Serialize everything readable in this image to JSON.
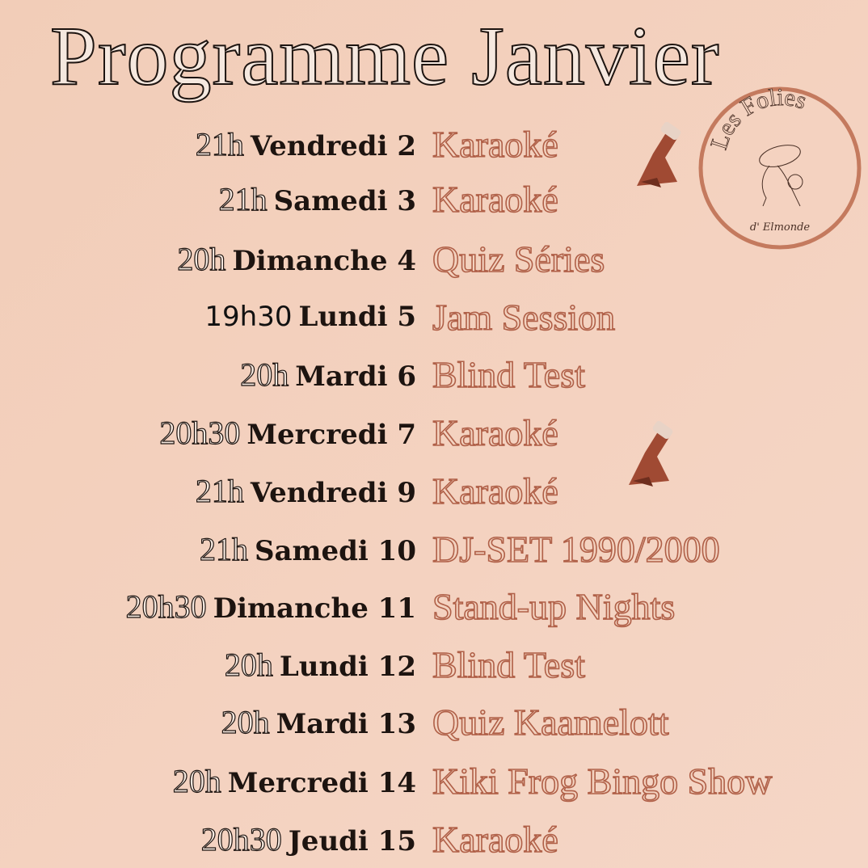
{
  "title": "Programme Janvier",
  "logo": {
    "text_top": "Les Folies",
    "text_bottom": "d' Elmonde",
    "ring_color": "#c47a5e"
  },
  "colors": {
    "background": "#f3d2bf",
    "event": "#b06048",
    "text": "#1d1410"
  },
  "events": [
    {
      "time": "21h",
      "day": "Vendredi 2",
      "event": "Karaoké"
    },
    {
      "time": "21h",
      "day": "Samedi 3",
      "event": "Karaoké"
    },
    {
      "time": "20h",
      "day": "Dimanche 4",
      "event": "Quiz Séries"
    },
    {
      "time": "19h30",
      "day": "Lundi 5",
      "event": "Jam Session"
    },
    {
      "time": "20h",
      "day": "Mardi 6",
      "event": "Blind Test"
    },
    {
      "time": "20h30",
      "day": "Mercredi 7",
      "event": "Karaoké"
    },
    {
      "time": "21h",
      "day": "Vendredi 9",
      "event": "Karaoké"
    },
    {
      "time": "21h",
      "day": "Samedi 10",
      "event": "DJ-SET 1990/2000"
    },
    {
      "time": "20h30",
      "day": "Dimanche 11",
      "event": "Stand-up Nights"
    },
    {
      "time": "20h",
      "day": "Lundi 12",
      "event": "Blind Test"
    },
    {
      "time": "20h",
      "day": "Mardi 13",
      "event": "Quiz Kaamelott"
    },
    {
      "time": "20h",
      "day": "Mercredi 14",
      "event": "Kiki Frog Bingo Show"
    },
    {
      "time": "20h30",
      "day": "Jeudi 15",
      "event": "Karaoké"
    }
  ]
}
